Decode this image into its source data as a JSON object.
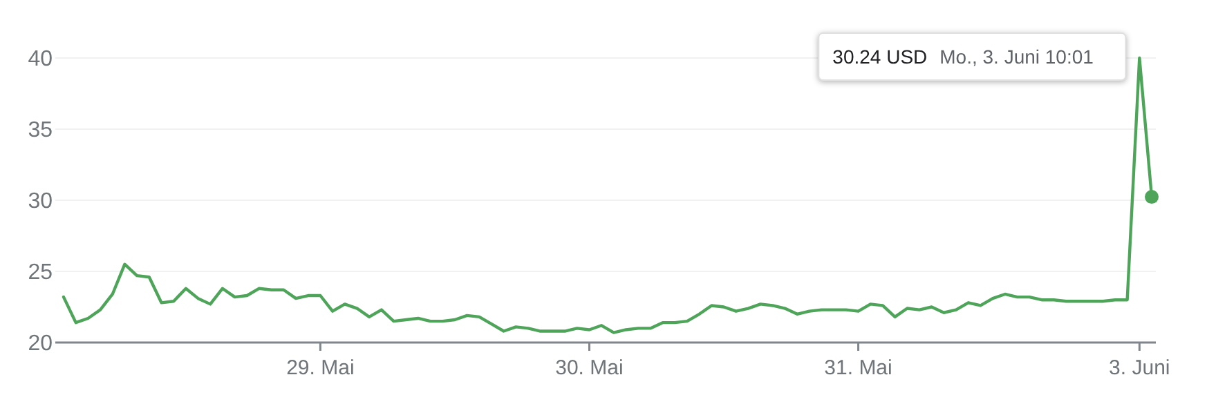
{
  "chart_data": {
    "type": "line",
    "categories": [
      null,
      null,
      null,
      null,
      null,
      null,
      null,
      null,
      null,
      null,
      null,
      null,
      null,
      null,
      null,
      null,
      null,
      null,
      null,
      null,
      null,
      "29. Mai",
      null,
      null,
      null,
      null,
      null,
      null,
      null,
      null,
      null,
      null,
      null,
      null,
      null,
      null,
      null,
      null,
      null,
      null,
      null,
      null,
      null,
      "30. Mai",
      null,
      null,
      null,
      null,
      null,
      null,
      null,
      null,
      null,
      null,
      null,
      null,
      null,
      null,
      null,
      null,
      null,
      null,
      null,
      null,
      null,
      "31. Mai",
      null,
      null,
      null,
      null,
      null,
      null,
      null,
      null,
      null,
      null,
      null,
      null,
      null,
      null,
      null,
      null,
      null,
      null,
      null,
      null,
      null,
      null,
      "3. Juni",
      null
    ],
    "ylim": [
      20,
      40
    ],
    "yticks": [
      20,
      25,
      30,
      35,
      40
    ],
    "grid": "y",
    "marker": "none",
    "line_style": "solid",
    "series": [
      {
        "color": "#4ea55a",
        "values": [
          23.2,
          21.4,
          21.7,
          22.3,
          23.4,
          25.5,
          24.7,
          24.6,
          22.8,
          22.9,
          23.8,
          23.1,
          22.7,
          23.8,
          23.2,
          23.3,
          23.8,
          23.7,
          23.7,
          23.1,
          23.3,
          23.3,
          22.2,
          22.7,
          22.4,
          21.8,
          22.3,
          21.5,
          21.6,
          21.7,
          21.5,
          21.5,
          21.6,
          21.9,
          21.8,
          21.3,
          20.8,
          21.1,
          21.0,
          20.8,
          20.8,
          20.8,
          21.0,
          20.9,
          21.2,
          20.7,
          20.9,
          21.0,
          21.0,
          21.4,
          21.4,
          21.5,
          22.0,
          22.6,
          22.5,
          22.2,
          22.4,
          22.7,
          22.6,
          22.4,
          22.0,
          22.2,
          22.3,
          22.3,
          22.3,
          22.2,
          22.7,
          22.6,
          21.8,
          22.4,
          22.3,
          22.5,
          22.1,
          22.3,
          22.8,
          22.6,
          23.1,
          23.4,
          23.2,
          23.2,
          23.0,
          23.0,
          22.9,
          22.9,
          22.9,
          22.9,
          23.0,
          23.0,
          40,
          30.24
        ]
      },
      {
        "type": "scatter",
        "marker": "circle",
        "color": "#4ea55a",
        "values": [
          null,
          null,
          null,
          null,
          null,
          null,
          null,
          null,
          null,
          null,
          null,
          null,
          null,
          null,
          null,
          null,
          null,
          null,
          null,
          null,
          null,
          null,
          null,
          null,
          null,
          null,
          null,
          null,
          null,
          null,
          null,
          null,
          null,
          null,
          null,
          null,
          null,
          null,
          null,
          null,
          null,
          null,
          null,
          null,
          null,
          null,
          null,
          null,
          null,
          null,
          null,
          null,
          null,
          null,
          null,
          null,
          null,
          null,
          null,
          null,
          null,
          null,
          null,
          null,
          null,
          null,
          null,
          null,
          null,
          null,
          null,
          null,
          null,
          null,
          null,
          null,
          null,
          null,
          null,
          null,
          null,
          null,
          null,
          null,
          null,
          null,
          null,
          null,
          null,
          30.24
        ]
      }
    ],
    "annotations": [
      "30.24 USD",
      "Mo., 3. Juni 10:01"
    ]
  }
}
